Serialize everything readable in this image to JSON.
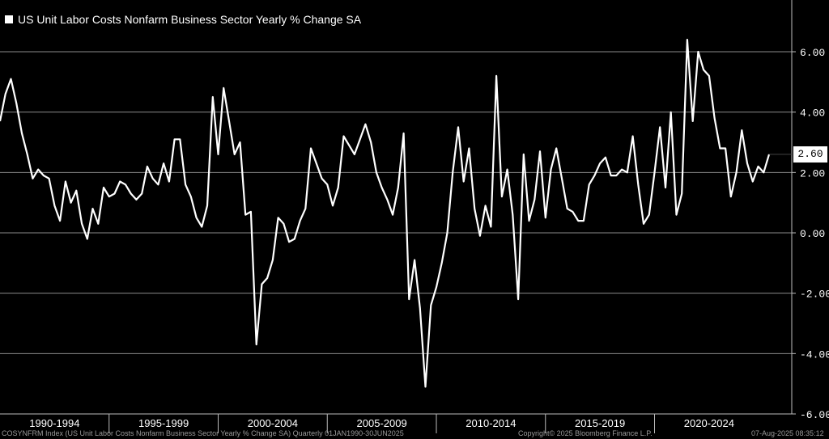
{
  "chart_data": {
    "type": "line",
    "title": "US Unit Labor Costs Nonfarm Business Sector Yearly % Change SA",
    "x_labels": [
      "1990-1994",
      "1995-1999",
      "2000-2004",
      "2005-2009",
      "2010-2014",
      "2015-2019",
      "2020-2024"
    ],
    "y_ticks": [
      "6.00",
      "4.00",
      "2.00",
      "0.00",
      "-2.00",
      "-4.00",
      "-6.00"
    ],
    "ylim": [
      -6,
      7.5
    ],
    "grid": true,
    "last_value_label": "2.60",
    "series": [
      {
        "color": "#ffffff",
        "x_start": "1990 Q1",
        "x_end": "2025 Q2",
        "frequency": "quarterly",
        "values": [
          3.7,
          4.6,
          5.1,
          4.3,
          3.3,
          2.6,
          1.8,
          2.1,
          1.9,
          1.8,
          0.9,
          0.4,
          1.7,
          1.0,
          1.4,
          0.3,
          -0.2,
          0.8,
          0.3,
          1.5,
          1.2,
          1.3,
          1.7,
          1.6,
          1.3,
          1.1,
          1.3,
          2.2,
          1.8,
          1.6,
          2.3,
          1.7,
          3.1,
          3.1,
          1.6,
          1.2,
          0.5,
          0.2,
          0.9,
          4.5,
          2.6,
          4.8,
          3.7,
          2.6,
          3.0,
          0.6,
          0.7,
          -3.7,
          -1.7,
          -1.5,
          -0.9,
          0.5,
          0.3,
          -0.3,
          -0.2,
          0.4,
          0.8,
          2.8,
          2.3,
          1.8,
          1.6,
          0.9,
          1.5,
          3.2,
          2.9,
          2.6,
          3.1,
          3.6,
          3.0,
          2.0,
          1.5,
          1.1,
          0.6,
          1.5,
          3.3,
          -2.2,
          -0.9,
          -2.5,
          -5.1,
          -2.4,
          -1.8,
          -1.0,
          0.0,
          2.0,
          3.5,
          1.7,
          2.8,
          0.8,
          -0.1,
          0.9,
          0.2,
          5.2,
          1.2,
          2.1,
          0.6,
          -2.2,
          2.6,
          0.4,
          1.1,
          2.7,
          0.5,
          2.1,
          2.8,
          1.8,
          0.8,
          0.7,
          0.4,
          0.4,
          1.6,
          1.9,
          2.3,
          2.5,
          1.9,
          1.9,
          2.1,
          2.0,
          3.2,
          1.6,
          0.3,
          0.6,
          2.0,
          3.5,
          1.5,
          4.0,
          0.6,
          1.3,
          6.4,
          3.7,
          6.0,
          5.4,
          5.2,
          3.8,
          2.8,
          2.8,
          1.2,
          2.0,
          3.4,
          2.3,
          1.7,
          2.2,
          2.0,
          2.6
        ]
      }
    ]
  },
  "footer": {
    "left": "COSYNFRM Index (US Unit Labor Costs Nonfarm Business Sector Yearly % Change SA)   Quarterly 01JAN1990-30JUN2025",
    "mid": "Copyright© 2025 Bloomberg Finance L.P.",
    "right": "07-Aug-2025 08:35:12"
  },
  "colors": {
    "background": "#000000",
    "line": "#ffffff",
    "grid": "#8a8a8a"
  }
}
